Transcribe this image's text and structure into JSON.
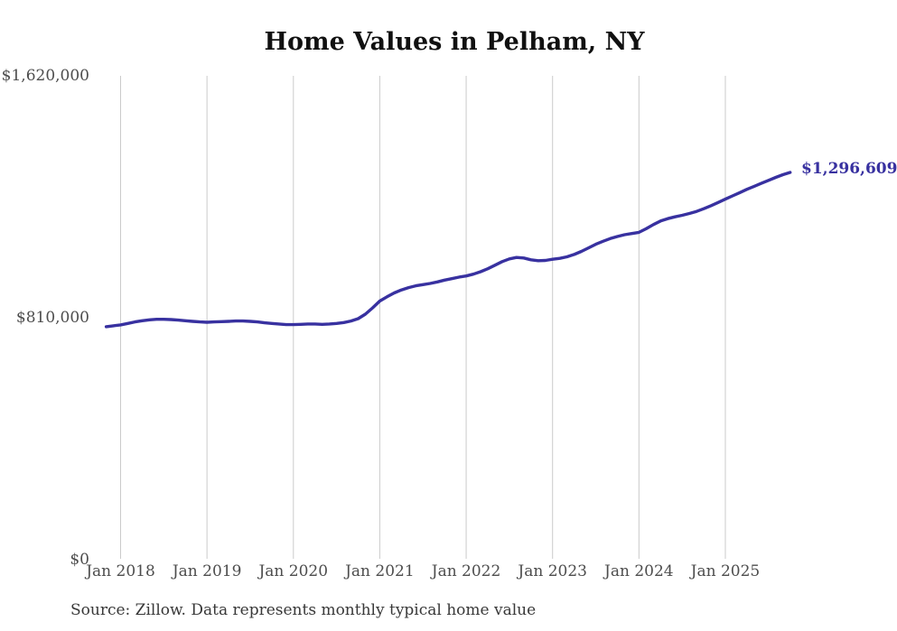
{
  "page": {
    "background": "#ffffff"
  },
  "chart": {
    "title": "Home Values in Pelham, NY",
    "end_label": "$1,296,609",
    "source_note": "Source: Zillow. Data represents monthly typical home value",
    "colors": {
      "line": "#3831a0",
      "grid": "#cbcbcb",
      "tick_text": "#4d4d4d",
      "title_text": "#111111",
      "source_text": "#383838"
    }
  },
  "chart_data": {
    "type": "line",
    "title": "Home Values in Pelham, NY",
    "xlabel": "",
    "ylabel": "",
    "ylim": [
      0,
      1620000
    ],
    "y_tick_values": [
      0,
      810000,
      1620000
    ],
    "y_tick_labels": [
      "$0",
      "$810,000",
      "$1,620,000"
    ],
    "x_tick_labels": [
      "Jan 2018",
      "Jan 2019",
      "Jan 2020",
      "Jan 2021",
      "Jan 2022",
      "Jan 2023",
      "Jan 2024",
      "Jan 2025"
    ],
    "grid": "vertical-only",
    "legend": "none",
    "final_value": 1296609,
    "final_value_label": "$1,296,609",
    "months": [
      "Nov 2017",
      "Dec 2017",
      "Jan 2018",
      "Feb 2018",
      "Mar 2018",
      "Apr 2018",
      "May 2018",
      "Jun 2018",
      "Jul 2018",
      "Aug 2018",
      "Sep 2018",
      "Oct 2018",
      "Nov 2018",
      "Dec 2018",
      "Jan 2019",
      "Feb 2019",
      "Mar 2019",
      "Apr 2019",
      "May 2019",
      "Jun 2019",
      "Jul 2019",
      "Aug 2019",
      "Sep 2019",
      "Oct 2019",
      "Nov 2019",
      "Dec 2019",
      "Jan 2020",
      "Feb 2020",
      "Mar 2020",
      "Apr 2020",
      "May 2020",
      "Jun 2020",
      "Jul 2020",
      "Aug 2020",
      "Sep 2020",
      "Oct 2020",
      "Nov 2020",
      "Dec 2020",
      "Jan 2021",
      "Feb 2021",
      "Mar 2021",
      "Apr 2021",
      "May 2021",
      "Jun 2021",
      "Jul 2021",
      "Aug 2021",
      "Sep 2021",
      "Oct 2021",
      "Nov 2021",
      "Dec 2021",
      "Jan 2022",
      "Feb 2022",
      "Mar 2022",
      "Apr 2022",
      "May 2022",
      "Jun 2022",
      "Jul 2022",
      "Aug 2022",
      "Sep 2022",
      "Oct 2022",
      "Nov 2022",
      "Dec 2022",
      "Jan 2023",
      "Feb 2023",
      "Mar 2023",
      "Apr 2023",
      "May 2023",
      "Jun 2023",
      "Jul 2023",
      "Aug 2023",
      "Sep 2023",
      "Oct 2023",
      "Nov 2023",
      "Dec 2023",
      "Jan 2024",
      "Feb 2024",
      "Mar 2024",
      "Apr 2024",
      "May 2024",
      "Jun 2024",
      "Jul 2024",
      "Aug 2024",
      "Sep 2024",
      "Oct 2024",
      "Nov 2024",
      "Dec 2024",
      "Jan 2025",
      "Feb 2025",
      "Mar 2025",
      "Apr 2025",
      "May 2025",
      "Jun 2025",
      "Jul 2025",
      "Aug 2025",
      "Sep 2025",
      "Oct 2025"
    ],
    "values": [
      780000,
      783000,
      786000,
      791000,
      796000,
      800000,
      803000,
      805000,
      805000,
      804000,
      802000,
      800000,
      798000,
      796000,
      795000,
      796000,
      797000,
      798000,
      799000,
      799000,
      798000,
      796000,
      793000,
      791000,
      789000,
      787000,
      787000,
      788000,
      789000,
      789000,
      788000,
      789000,
      791000,
      794000,
      799000,
      807000,
      822000,
      843000,
      866000,
      880000,
      893000,
      903000,
      911000,
      917000,
      921000,
      925000,
      930000,
      936000,
      941000,
      946000,
      950000,
      956000,
      964000,
      974000,
      986000,
      998000,
      1007000,
      1012000,
      1010000,
      1004000,
      1001000,
      1002000,
      1006000,
      1009000,
      1014000,
      1022000,
      1032000,
      1044000,
      1056000,
      1066000,
      1075000,
      1082000,
      1088000,
      1092000,
      1096000,
      1108000,
      1122000,
      1134000,
      1142000,
      1148000,
      1153000,
      1159000,
      1166000,
      1175000,
      1185000,
      1196000,
      1207000,
      1218000,
      1229000,
      1240000,
      1250000,
      1260000,
      1270000,
      1280000,
      1289000,
      1296609
    ]
  }
}
